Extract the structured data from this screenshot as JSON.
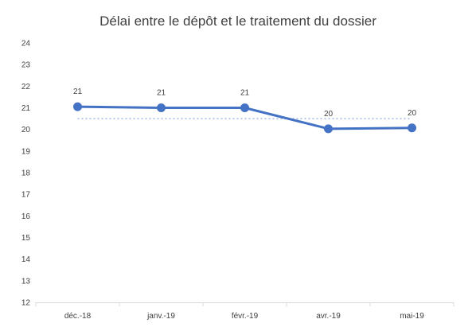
{
  "chart_data": {
    "type": "line",
    "title": "Délai entre le dépôt et le traitement du dossier",
    "xlabel": "",
    "ylabel": "",
    "categories": [
      "déc.-18",
      "janv.-19",
      "févr.-19",
      "avr.-19",
      "mai-19"
    ],
    "series": [
      {
        "values": [
          21.05,
          21.0,
          21.0,
          20.03,
          20.07
        ],
        "data_labels": [
          "21",
          "21",
          "21",
          "20",
          "20"
        ],
        "color": "#4472C4",
        "style": "solid",
        "markers": true
      },
      {
        "values": [
          20.5,
          20.5,
          20.5,
          20.5,
          20.5
        ],
        "color": "#B4C7E7",
        "style": "dotted",
        "markers": false
      }
    ],
    "ylim": [
      12,
      24
    ],
    "yticks": [
      12,
      13,
      14,
      15,
      16,
      17,
      18,
      19,
      20,
      21,
      22,
      23,
      24
    ],
    "grid": false,
    "legend": "none"
  }
}
